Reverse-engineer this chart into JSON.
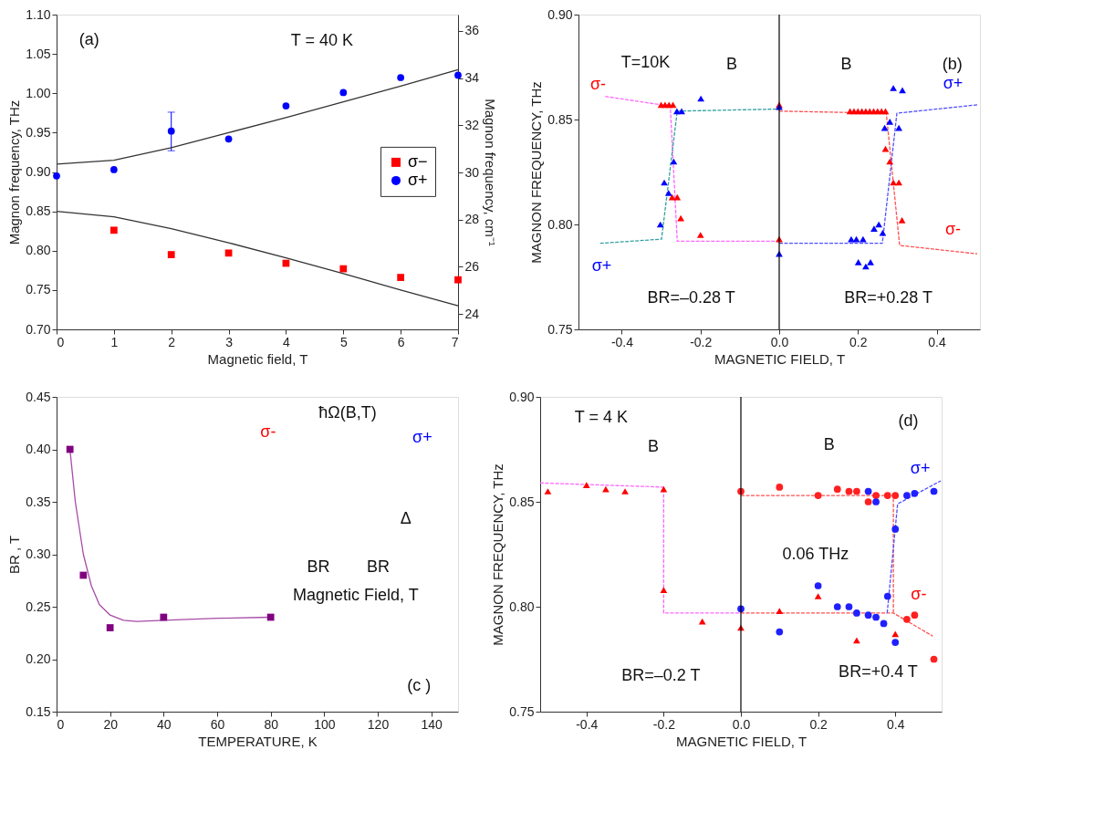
{
  "chart_data": [
    {
      "type": "scatter",
      "xlabel": "Magnetic field, T",
      "ylabel": "Magnon frequency, THz",
      "y2label": "Magnon frequency, cm⁻¹",
      "xlim": [
        0,
        7
      ],
      "xticks": [
        0,
        1,
        2,
        3,
        4,
        5,
        6,
        7
      ],
      "ylim": [
        0.7,
        1.1
      ],
      "yticks": [
        {
          "value": 0.7,
          "label": "0.70"
        },
        0.75,
        {
          "value": 0.8,
          "label": "0.80"
        },
        0.85,
        {
          "value": 0.9,
          "label": "0.90"
        },
        0.95,
        {
          "value": 1.0,
          "label": "1.00"
        },
        1.05,
        {
          "value": 1.1,
          "label": "1.10"
        }
      ],
      "y2lim": [
        23.35,
        36.69
      ],
      "y2ticks": [
        24,
        26,
        28,
        30,
        32,
        34,
        36
      ],
      "grid": false,
      "legend": "right",
      "series": [
        {
          "name": "σ−",
          "color": "#ff0000",
          "marker": "square",
          "x": [
            1,
            2,
            3,
            4,
            5,
            6,
            7
          ],
          "values": [
            0.826,
            0.795,
            0.797,
            0.784,
            0.777,
            0.766,
            0.763
          ]
        },
        {
          "name": "σ+",
          "color": "#0000ff",
          "marker": "circle",
          "x": [
            0,
            1,
            2,
            3,
            4,
            5,
            6,
            7
          ],
          "values": [
            0.895,
            0.903,
            0.952,
            0.942,
            0.984,
            1.001,
            1.02,
            1.023
          ],
          "errors": [
            null,
            null,
            [
              0.927,
              0.976
            ],
            null,
            null,
            null,
            null,
            null
          ]
        },
        {
          "type": "line",
          "color": "#333333",
          "line_style": "solid",
          "x": [
            0,
            1,
            2,
            3,
            4,
            5,
            6,
            7
          ],
          "values": [
            0.91,
            0.915,
            0.931,
            0.95,
            0.969,
            0.989,
            1.009,
            1.03
          ]
        },
        {
          "type": "line",
          "color": "#333333",
          "line_style": "solid",
          "x": [
            0,
            1,
            2,
            3,
            4,
            5,
            6,
            7
          ],
          "values": [
            0.85,
            0.843,
            0.828,
            0.81,
            0.791,
            0.771,
            0.75,
            0.73
          ]
        }
      ],
      "annotations": [
        "(a)",
        "T = 40 K"
      ]
    },
    {
      "type": "scatter",
      "xlabel": "MAGNETIC FIELD, T",
      "ylabel": "MAGNON FREQUENCY, THz",
      "xlim": [
        -0.51,
        0.51
      ],
      "xticks": [
        -0.4,
        -0.2,
        {
          "value": 0,
          "label": "0.0"
        },
        0.2,
        0.4
      ],
      "ylim": [
        0.75,
        0.9
      ],
      "yticks": [
        0.75,
        {
          "value": 0.8,
          "label": "0.80"
        },
        0.85,
        {
          "value": 0.9,
          "label": "0.90"
        }
      ],
      "grid": false,
      "legend": false,
      "ref_lines": [
        {
          "axis": "x",
          "value": 0,
          "color": "#000000"
        }
      ],
      "series": [
        {
          "type": "line",
          "color": "#ff66ff",
          "line_style": "dashed",
          "x": [
            -0.442,
            -0.299,
            -0.277,
            -0.259,
            0
          ],
          "values": [
            0.861,
            0.857,
            0.857,
            0.792,
            0.792
          ]
        },
        {
          "type": "line",
          "color": "#33a0a0",
          "line_style": "dashed",
          "x": [
            -0.455,
            -0.299,
            -0.259,
            0
          ],
          "values": [
            0.791,
            0.793,
            0.854,
            0.855
          ]
        },
        {
          "type": "line",
          "color": "#ff5050",
          "line_style": "dashed",
          "x": [
            0,
            0.272,
            0.306,
            0.503
          ],
          "values": [
            0.854,
            0.853,
            0.79,
            0.786
          ]
        },
        {
          "type": "line",
          "color": "#5050ff",
          "line_style": "dashed",
          "x": [
            0,
            0.262,
            0.299,
            0.503
          ],
          "values": [
            0.791,
            0.791,
            0.853,
            0.857
          ]
        },
        {
          "color": "#ff0000",
          "marker": "triangle",
          "x": [
            -0.3,
            -0.29,
            -0.28,
            -0.27,
            0,
            0,
            -0.272,
            -0.259,
            -0.25,
            -0.2,
            0.18,
            0.19,
            0.2,
            0.21,
            0.22,
            0.23,
            0.24,
            0.25,
            0.26,
            0.27,
            0.27,
            0.281,
            0.29,
            0.304,
            0.312
          ],
          "values": [
            0.857,
            0.857,
            0.857,
            0.857,
            0.857,
            0.793,
            0.813,
            0.813,
            0.803,
            0.795,
            0.854,
            0.854,
            0.854,
            0.854,
            0.854,
            0.854,
            0.854,
            0.854,
            0.854,
            0.854,
            0.836,
            0.83,
            0.82,
            0.82,
            0.802
          ]
        },
        {
          "color": "#0000ff",
          "marker": "triangle",
          "x": [
            -0.199,
            -0.26,
            -0.248,
            0,
            -0.268,
            -0.292,
            -0.281,
            -0.302,
            0,
            0.29,
            0.313,
            0.268,
            0.281,
            0.304,
            0.183,
            0.196,
            0.213,
            0.241,
            0.253,
            0.263,
            0.201,
            0.22,
            0.232
          ],
          "values": [
            0.86,
            0.854,
            0.854,
            0.856,
            0.83,
            0.82,
            0.815,
            0.8,
            0.786,
            0.865,
            0.864,
            0.846,
            0.849,
            0.846,
            0.793,
            0.793,
            0.793,
            0.798,
            0.8,
            0.796,
            0.782,
            0.78,
            0.782
          ]
        }
      ],
      "annotations": [
        "T=10K",
        "(b)",
        "B",
        "B",
        "σ-",
        "σ+",
        "σ-",
        "σ+",
        "BR=–0.28 T",
        "BR=+0.28 T"
      ]
    },
    {
      "type": "scatter",
      "xlabel": "TEMPERATURE, K",
      "ylabel": "BR , T",
      "xlim": [
        0,
        150
      ],
      "xticks": [
        0,
        20,
        40,
        60,
        80,
        100,
        120,
        140
      ],
      "ylim": [
        0.15,
        0.45
      ],
      "yticks": [
        0.15,
        {
          "value": 0.2,
          "label": "0.20"
        },
        0.25,
        {
          "value": 0.3,
          "label": "0.30"
        },
        0.35,
        {
          "value": 0.4,
          "label": "0.40"
        },
        0.45
      ],
      "grid": false,
      "legend": false,
      "series": [
        {
          "type": "line",
          "color": "#a64ca6",
          "line_style": "solid",
          "x": [
            5,
            7,
            10,
            13,
            16,
            20,
            25,
            30,
            40,
            60,
            80
          ],
          "values": [
            0.4,
            0.35,
            0.3,
            0.27,
            0.252,
            0.242,
            0.237,
            0.236,
            0.237,
            0.239,
            0.24
          ]
        },
        {
          "color": "#800080",
          "marker": "square",
          "x": [
            5,
            10,
            20,
            40,
            80
          ],
          "values": [
            0.4,
            0.28,
            0.23,
            0.24,
            0.24
          ]
        }
      ],
      "annotations": [
        "ħΩ(B,T)",
        "σ-",
        "σ+",
        "Δ",
        "BR",
        "BR",
        "Magnetic Field, T",
        "(c )"
      ]
    },
    {
      "type": "scatter",
      "xlabel": "MAGNETIC FIELD, T",
      "ylabel": "MAGNON  FREQUENCY,  THz",
      "xlim": [
        -0.52,
        0.52
      ],
      "xticks": [
        -0.4,
        -0.2,
        {
          "value": 0,
          "label": "0.0"
        },
        0.2,
        0.4
      ],
      "ylim": [
        0.75,
        0.9
      ],
      "yticks": [
        0.75,
        {
          "value": 0.8,
          "label": "0.80"
        },
        0.85,
        {
          "value": 0.9,
          "label": "0.90"
        }
      ],
      "grid": false,
      "legend": false,
      "ref_lines": [
        {
          "axis": "x",
          "value": 0,
          "color": "#000000"
        }
      ],
      "series": [
        {
          "type": "line",
          "color": "#ff66ff",
          "line_style": "dashed",
          "x": [
            -0.52,
            -0.2,
            -0.2,
            0
          ],
          "values": [
            0.859,
            0.857,
            0.797,
            0.797
          ]
        },
        {
          "type": "line",
          "color": "#ff5050",
          "line_style": "dashed",
          "x": [
            0,
            0.395,
            0.395
          ],
          "values": [
            0.853,
            0.853,
            0.797
          ]
        },
        {
          "type": "line",
          "color": "#ff5050",
          "line_style": "dashed",
          "x": [
            0,
            0.395,
            0.497
          ],
          "values": [
            0.797,
            0.797,
            0.786
          ]
        },
        {
          "type": "line",
          "color": "#5050ff",
          "line_style": "dashed",
          "x": [
            0.379,
            0.406,
            0.518
          ],
          "values": [
            0.797,
            0.849,
            0.86
          ]
        },
        {
          "color": "#ff0000",
          "marker": "triangle",
          "x": [
            -0.5,
            -0.4,
            -0.35,
            -0.3,
            -0.2,
            -0.2,
            -0.1,
            0,
            0.1,
            0.2,
            0.3,
            0.4
          ],
          "values": [
            0.855,
            0.858,
            0.856,
            0.855,
            0.856,
            0.808,
            0.793,
            0.79,
            0.798,
            0.805,
            0.784,
            0.787
          ]
        },
        {
          "color": "#ff2020",
          "marker": "circle",
          "x": [
            0,
            0.1,
            0.2,
            0.25,
            0.28,
            0.3,
            0.33,
            0.35,
            0.38,
            0.4,
            0.43,
            0.45,
            0.5
          ],
          "values": [
            0.855,
            0.857,
            0.853,
            0.856,
            0.855,
            0.855,
            0.85,
            0.853,
            0.853,
            0.853,
            0.794,
            0.796,
            0.775
          ]
        },
        {
          "color": "#2020ff",
          "marker": "circle",
          "x": [
            0,
            0.1,
            0.2,
            0.25,
            0.28,
            0.3,
            0.33,
            0.35,
            0.37,
            0.38,
            0.33,
            0.35,
            0.4,
            0.4,
            0.43,
            0.45,
            0.5
          ],
          "values": [
            0.799,
            0.788,
            0.81,
            0.8,
            0.8,
            0.797,
            0.796,
            0.795,
            0.792,
            0.805,
            0.855,
            0.85,
            0.837,
            0.783,
            0.853,
            0.854,
            0.855
          ]
        }
      ],
      "annotations": [
        "T = 4 K",
        "(d)",
        "B",
        "B",
        "σ+",
        "σ-",
        "0.06 THz",
        "BR=–0.2 T",
        "BR=+0.4 T"
      ]
    }
  ]
}
